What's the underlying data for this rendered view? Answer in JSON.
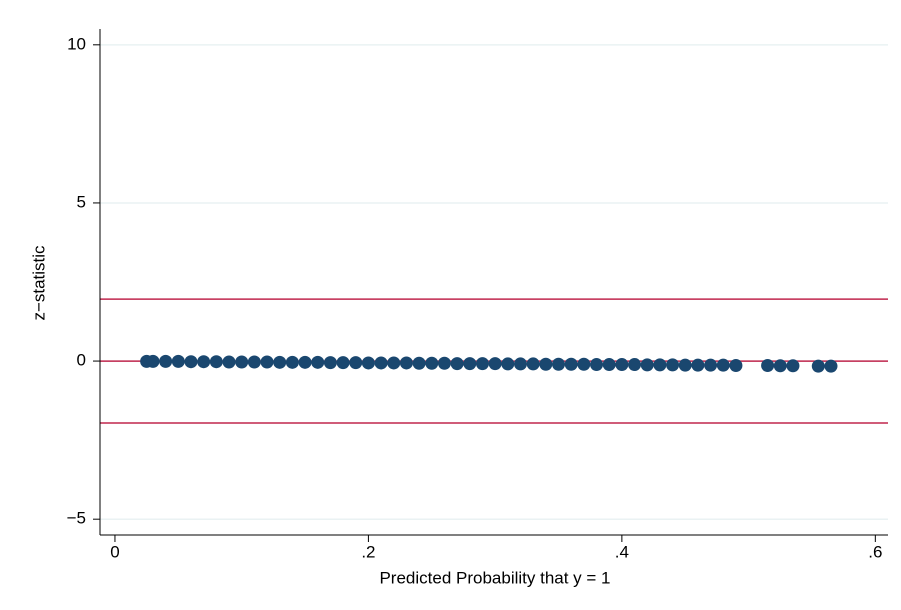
{
  "chart_data": {
    "type": "scatter",
    "xlabel": "Predicted Probability that y = 1",
    "ylabel": "z−statistic",
    "xlim": [
      -0.0118,
      0.61
    ],
    "ylim": [
      -5.5,
      10.5
    ],
    "xticks": [
      0,
      {
        "value": 0.2,
        "label": ".2"
      },
      {
        "value": 0.4,
        "label": ".4"
      },
      {
        "value": 0.6,
        "label": ".6"
      }
    ],
    "yticks": [
      {
        "value": -5,
        "label": "−5"
      },
      0,
      5,
      10
    ],
    "grid": true,
    "reference_lines": {
      "values": [
        1.96,
        0,
        -1.96
      ],
      "color": "#c0264d"
    },
    "series": [
      {
        "color": "#1a476f",
        "x": [
          0.025,
          0.03,
          0.04,
          0.05,
          0.06,
          0.07,
          0.08,
          0.09,
          0.1,
          0.11,
          0.12,
          0.13,
          0.14,
          0.15,
          0.16,
          0.17,
          0.18,
          0.19,
          0.2,
          0.21,
          0.22,
          0.23,
          0.24,
          0.25,
          0.26,
          0.27,
          0.28,
          0.29,
          0.3,
          0.31,
          0.32,
          0.33,
          0.34,
          0.35,
          0.36,
          0.37,
          0.38,
          0.39,
          0.4,
          0.41,
          0.42,
          0.43,
          0.44,
          0.45,
          0.46,
          0.47,
          0.48,
          0.49,
          0.515,
          0.525,
          0.535,
          0.555,
          0.565
        ],
        "values": [
          -0.01,
          -0.01,
          -0.01,
          -0.01,
          -0.02,
          -0.02,
          -0.02,
          -0.03,
          -0.03,
          -0.03,
          -0.03,
          -0.04,
          -0.04,
          -0.04,
          -0.04,
          -0.05,
          -0.05,
          -0.05,
          -0.06,
          -0.06,
          -0.06,
          -0.06,
          -0.07,
          -0.07,
          -0.07,
          -0.08,
          -0.08,
          -0.08,
          -0.08,
          -0.09,
          -0.09,
          -0.09,
          -0.1,
          -0.1,
          -0.1,
          -0.1,
          -0.11,
          -0.11,
          -0.11,
          -0.11,
          -0.12,
          -0.12,
          -0.12,
          -0.13,
          -0.13,
          -0.13,
          -0.13,
          -0.14,
          -0.14,
          -0.15,
          -0.15,
          -0.16,
          -0.16
        ]
      }
    ]
  }
}
